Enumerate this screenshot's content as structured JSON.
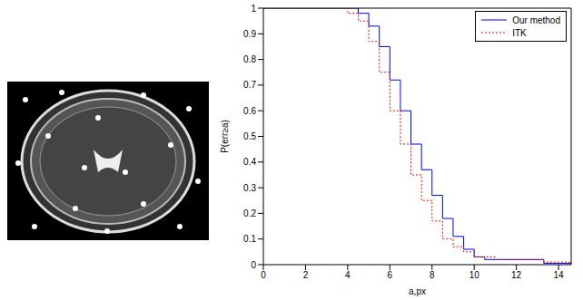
{
  "chart_data": {
    "type": "line",
    "x_label": "a,px",
    "y_label": "P(err≥a)",
    "x": [
      0,
      4,
      4.5,
      5,
      5.5,
      6,
      6.5,
      7,
      7.5,
      8,
      8.5,
      9,
      9.5,
      10,
      10.5,
      11,
      13.3,
      14.6
    ],
    "series": [
      {
        "name": "Our method",
        "color": "#0000ff",
        "line_style": "solid",
        "values": [
          1,
          1,
          0.98,
          0.93,
          0.85,
          0.72,
          0.6,
          0.47,
          0.37,
          0.27,
          0.18,
          0.11,
          0.06,
          0.03,
          0.02,
          0.02,
          0.005,
          0.005
        ]
      },
      {
        "name": "ITK",
        "color": "#ff0000",
        "line_style": "dotted",
        "values": [
          1,
          0.98,
          0.95,
          0.87,
          0.75,
          0.6,
          0.47,
          0.35,
          0.25,
          0.17,
          0.1,
          0.07,
          0.05,
          0.03,
          0.03,
          0.02,
          0.01,
          0.01
        ]
      }
    ],
    "xlim": [
      0,
      14.6
    ],
    "xticks": [
      0,
      2,
      4,
      6,
      8,
      10,
      12,
      14
    ],
    "ylim": [
      0,
      1
    ],
    "yticks": [
      0,
      0.1,
      0.2,
      0.3,
      0.4,
      0.5,
      0.6,
      0.7,
      0.8,
      0.9,
      1
    ],
    "legend": "upper right",
    "grid": false
  }
}
